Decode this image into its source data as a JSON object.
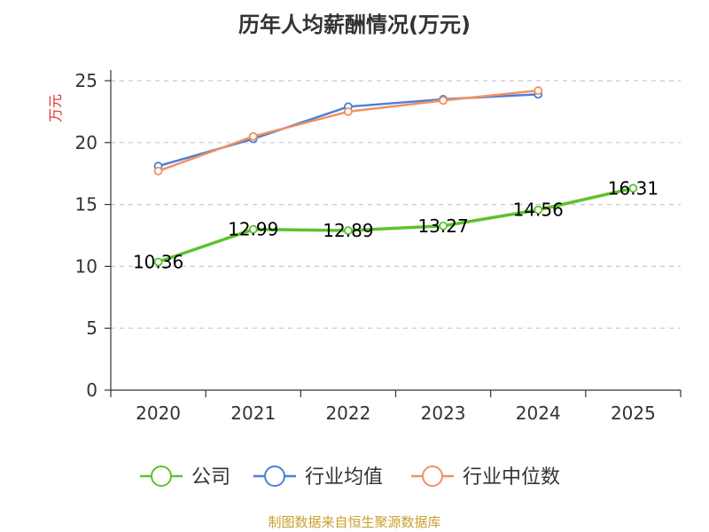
{
  "chart_data": {
    "type": "line",
    "title": "历年人均薪酬情况(万元)",
    "ylabel": "万元",
    "categories": [
      "2020",
      "2021",
      "2022",
      "2023",
      "2024",
      "2025"
    ],
    "ylim": [
      0,
      25
    ],
    "yticks": [
      0,
      5,
      10,
      15,
      20,
      25
    ],
    "grid": true,
    "legend_position": "bottom",
    "series": [
      {
        "name": "公司",
        "color": "#5cc22d",
        "values": [
          10.36,
          12.99,
          12.89,
          13.27,
          14.56,
          16.31
        ],
        "labels": [
          "10.36",
          "12.99",
          "12.89",
          "13.27",
          "14.56",
          "16.31"
        ]
      },
      {
        "name": "行业均值",
        "color": "#4e7fd8",
        "values": [
          18.1,
          20.3,
          22.9,
          23.5,
          23.9,
          null
        ]
      },
      {
        "name": "行业中位数",
        "color": "#f39060",
        "values": [
          17.7,
          20.5,
          22.5,
          23.4,
          24.2,
          null
        ]
      }
    ]
  },
  "source": {
    "text": "制图数据来自恒生聚源数据库",
    "color": "#c8a030"
  },
  "ylabel_color": "#e03030"
}
